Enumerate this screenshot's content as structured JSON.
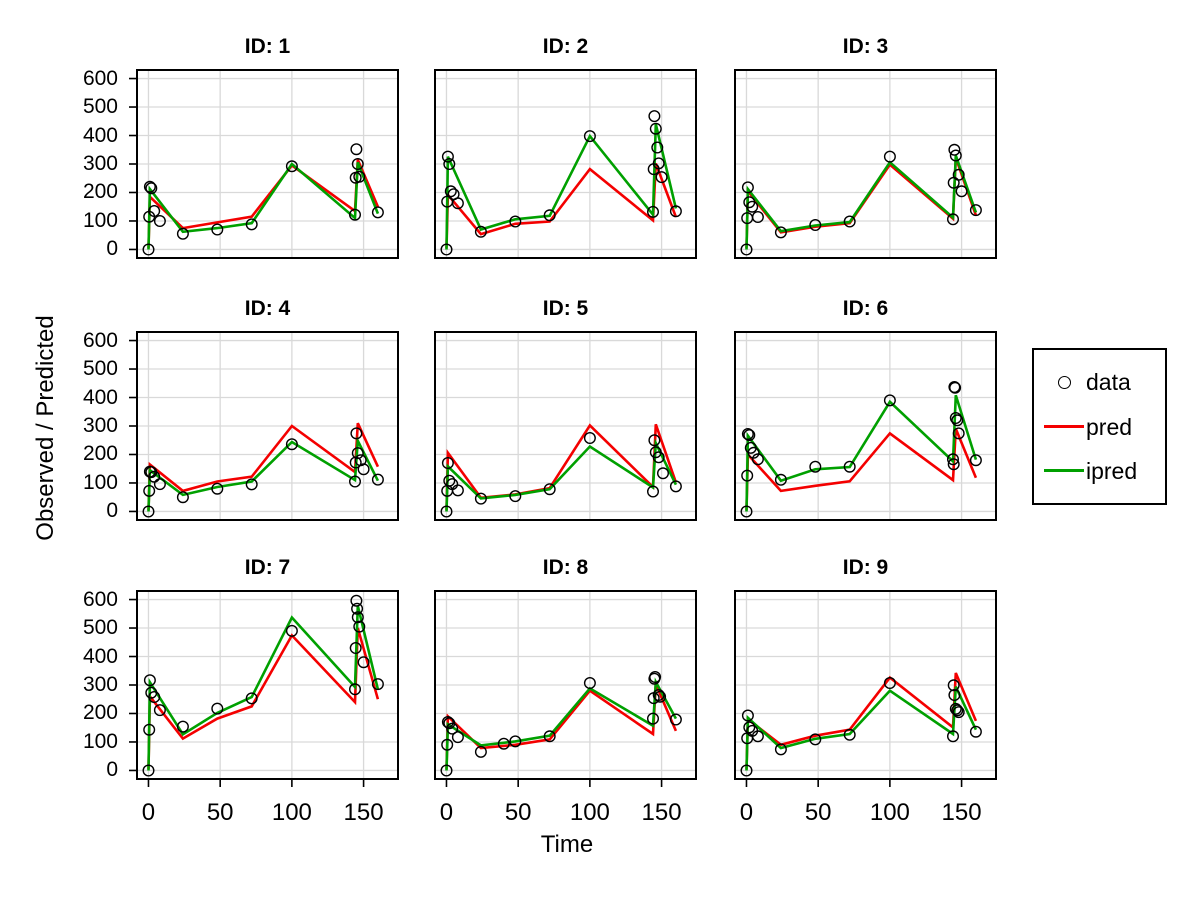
{
  "colors": {
    "pred": "#f40000",
    "ipred": "#00a000",
    "points": "#000000",
    "grid": "#d9d9d9",
    "border": "#000000",
    "background": "#ffffff"
  },
  "legend": {
    "items": [
      {
        "label": "data",
        "marker": "circle",
        "color": "#000000"
      },
      {
        "label": "pred",
        "marker": "line",
        "color": "#f40000"
      },
      {
        "label": "ipred",
        "marker": "line",
        "color": "#00a000"
      }
    ]
  },
  "chart_data": {
    "type": "line",
    "title": "",
    "xlabel": "Time",
    "ylabel": "Observed / Predicted",
    "x_ticks": [
      0,
      50,
      100,
      150
    ],
    "y_ticks": [
      0,
      100,
      200,
      300,
      400,
      500,
      600
    ],
    "xlim": [
      -8,
      174
    ],
    "ylim": [
      -30,
      630
    ],
    "grid": true,
    "legend_position": "right",
    "series_names": [
      "data",
      "pred",
      "ipred"
    ],
    "line_times": [
      0,
      1,
      24,
      48,
      72,
      100,
      144,
      146,
      160
    ],
    "panels": [
      {
        "title": "ID: 1",
        "data_t": [
          0,
          0.5,
          1,
          2,
          4,
          8,
          24,
          48,
          72,
          100,
          144,
          144.5,
          145,
          146,
          147,
          160
        ],
        "data_y": [
          0,
          115,
          220,
          215,
          135,
          100,
          55,
          70,
          88,
          292,
          122,
          252,
          352,
          300,
          255,
          130
        ],
        "pred": [
          5,
          185,
          75,
          95,
          115,
          295,
          135,
          315,
          150
        ],
        "ipred": [
          0,
          212,
          62,
          75,
          92,
          300,
          110,
          306,
          126
        ]
      },
      {
        "title": "ID: 2",
        "data_t": [
          0,
          0.5,
          1,
          2,
          3,
          5,
          8,
          24,
          48,
          72,
          100,
          144,
          144.5,
          145,
          146,
          147,
          148,
          150,
          160
        ],
        "data_y": [
          0,
          168,
          326,
          300,
          204,
          194,
          162,
          62,
          98,
          120,
          398,
          132,
          282,
          468,
          424,
          358,
          302,
          254,
          134
        ],
        "pred": [
          5,
          192,
          54,
          90,
          98,
          282,
          102,
          302,
          114
        ],
        "ipred": [
          0,
          326,
          70,
          106,
          118,
          398,
          122,
          440,
          144
        ]
      },
      {
        "title": "ID: 3",
        "data_t": [
          0,
          0.5,
          1,
          2,
          4,
          8,
          24,
          48,
          72,
          100,
          144,
          144.5,
          145,
          146,
          148,
          150,
          160
        ],
        "data_y": [
          0,
          110,
          218,
          166,
          150,
          114,
          60,
          86,
          98,
          326,
          106,
          234,
          350,
          330,
          262,
          204,
          138
        ],
        "pred": [
          5,
          205,
          60,
          80,
          92,
          298,
          108,
          322,
          120
        ],
        "ipred": [
          0,
          212,
          64,
          84,
          96,
          306,
          112,
          330,
          130
        ]
      },
      {
        "title": "ID: 4",
        "data_t": [
          0,
          0.5,
          1,
          2,
          4,
          8,
          24,
          48,
          72,
          100,
          144,
          144.5,
          145,
          146,
          148,
          150,
          160
        ],
        "data_y": [
          0,
          72,
          140,
          138,
          122,
          96,
          50,
          80,
          95,
          236,
          105,
          172,
          274,
          205,
          180,
          148,
          112
        ],
        "pred": [
          5,
          165,
          72,
          105,
          122,
          300,
          138,
          310,
          157
        ],
        "ipred": [
          0,
          145,
          58,
          86,
          105,
          244,
          110,
          248,
          108
        ]
      },
      {
        "title": "ID: 5",
        "data_t": [
          0,
          0.5,
          1,
          2,
          4,
          8,
          24,
          48,
          72,
          100,
          144,
          145,
          146,
          148,
          151,
          160
        ],
        "data_y": [
          0,
          72,
          170,
          108,
          96,
          74,
          45,
          54,
          78,
          258,
          70,
          250,
          208,
          190,
          134,
          88
        ],
        "pred": [
          5,
          206,
          48,
          60,
          82,
          302,
          86,
          306,
          102
        ],
        "ipred": [
          0,
          158,
          46,
          58,
          78,
          228,
          84,
          240,
          94
        ]
      },
      {
        "title": "ID: 6",
        "data_t": [
          0,
          0.5,
          1,
          2,
          3,
          5,
          8,
          24,
          48,
          72,
          100,
          144,
          144.5,
          145,
          145.5,
          146,
          147,
          148,
          160
        ],
        "data_y": [
          0,
          126,
          272,
          268,
          223,
          206,
          183,
          111,
          157,
          157,
          390,
          183,
          166,
          437,
          434,
          328,
          320,
          274,
          180
        ],
        "pred": [
          5,
          200,
          72,
          90,
          106,
          274,
          110,
          290,
          118
        ],
        "ipred": [
          0,
          266,
          108,
          148,
          156,
          385,
          176,
          408,
          182
        ]
      },
      {
        "title": "ID: 7",
        "data_t": [
          0,
          0.5,
          1,
          2,
          4,
          8,
          24,
          48,
          72,
          100,
          144,
          144.5,
          145,
          145.5,
          146,
          147,
          150,
          160
        ],
        "data_y": [
          0,
          143,
          317,
          273,
          258,
          212,
          154,
          217,
          253,
          490,
          285,
          430,
          596,
          568,
          538,
          505,
          380,
          303
        ],
        "pred": [
          5,
          260,
          112,
          182,
          225,
          474,
          240,
          500,
          250
        ],
        "ipred": [
          0,
          310,
          127,
          202,
          258,
          537,
          293,
          578,
          285
        ]
      },
      {
        "title": "ID: 8",
        "data_t": [
          0,
          0.5,
          1,
          2,
          4,
          8,
          24,
          40,
          48,
          72,
          100,
          144,
          144.5,
          145,
          145.5,
          148,
          149,
          160
        ],
        "data_y": [
          0,
          90,
          170,
          166,
          147,
          117,
          65,
          94,
          102,
          120,
          307,
          182,
          254,
          322,
          328,
          265,
          259,
          179
        ],
        "pred": [
          5,
          190,
          79,
          90,
          109,
          280,
          128,
          303,
          139
        ],
        "ipred": [
          0,
          162,
          88,
          102,
          122,
          288,
          157,
          311,
          182
        ]
      },
      {
        "title": "ID: 9",
        "data_t": [
          0,
          0.5,
          1,
          2,
          4,
          8,
          24,
          48,
          72,
          100,
          144,
          144.5,
          145,
          146,
          147,
          148,
          160
        ],
        "data_y": [
          0,
          113,
          193,
          151,
          139,
          120,
          74,
          109,
          125,
          307,
          120,
          299,
          265,
          216,
          211,
          205,
          136
        ],
        "pred": [
          5,
          180,
          90,
          122,
          143,
          326,
          151,
          342,
          174
        ],
        "ipred": [
          0,
          185,
          79,
          111,
          128,
          280,
          128,
          294,
          143
        ]
      }
    ]
  }
}
